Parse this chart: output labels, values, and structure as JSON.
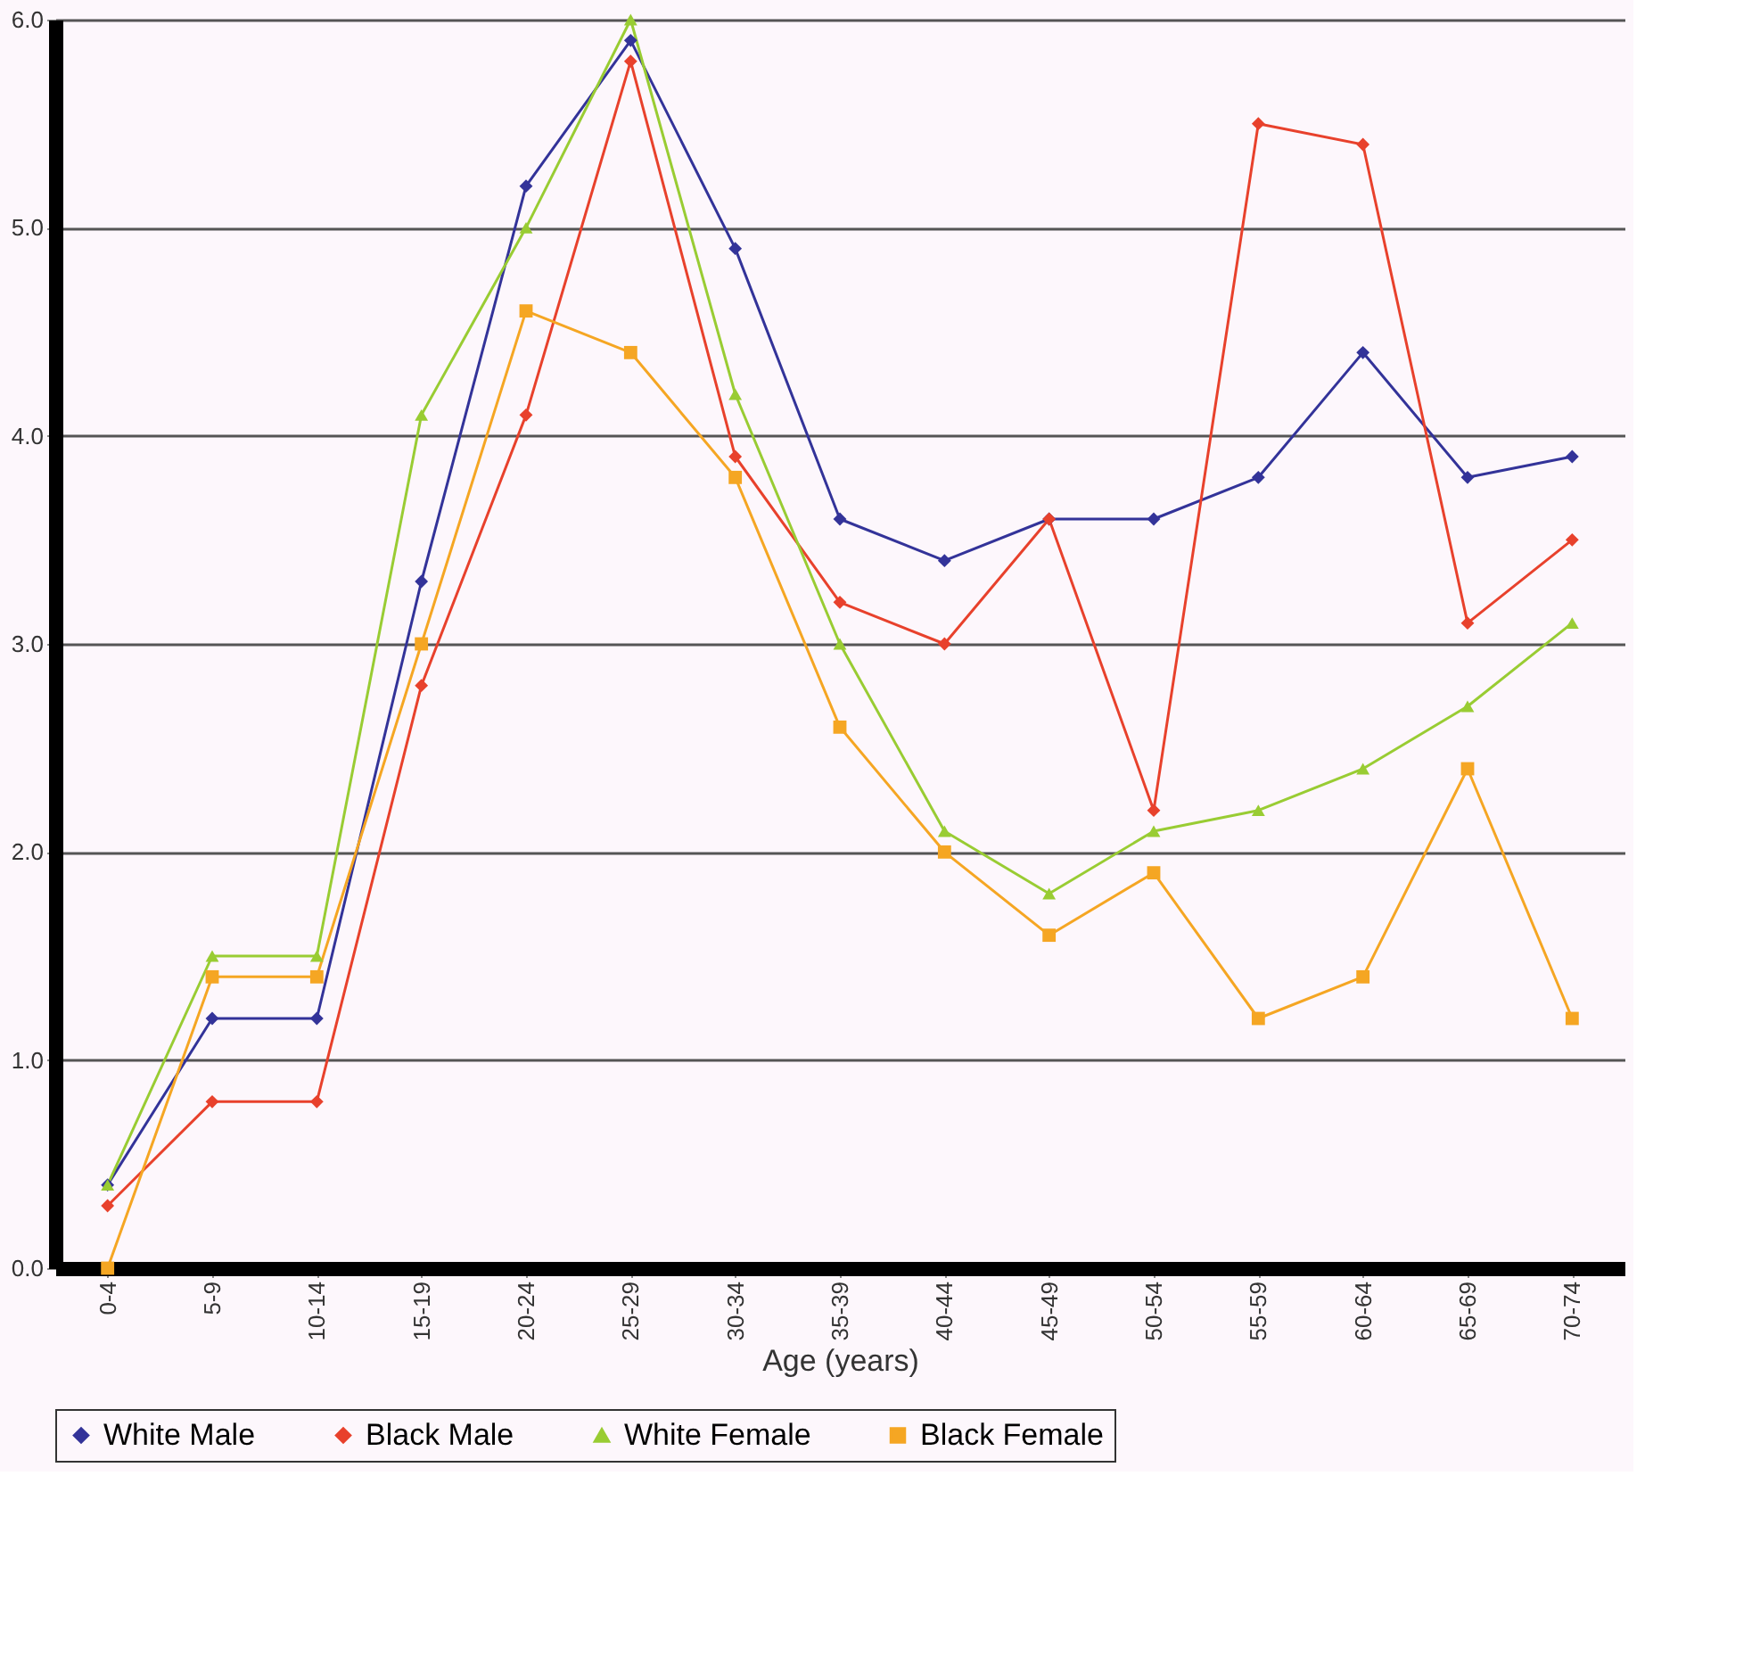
{
  "chart_data": {
    "type": "line",
    "xlabel": "Age (years)",
    "categories": [
      "0-4",
      "5-9",
      "10-14",
      "15-19",
      "20-24",
      "25-29",
      "30-34",
      "35-39",
      "40-44",
      "45-49",
      "50-54",
      "55-59",
      "60-64",
      "65-69",
      "70-74"
    ],
    "series": [
      {
        "name": "White Male",
        "color": "#333399",
        "marker": "diamond",
        "values": [
          0.4,
          1.2,
          1.2,
          3.3,
          5.2,
          5.9,
          4.9,
          3.6,
          3.4,
          3.6,
          3.6,
          3.8,
          4.4,
          3.8,
          3.9
        ]
      },
      {
        "name": "Black Male",
        "color": "#e8412c",
        "marker": "diamond",
        "values": [
          0.3,
          0.8,
          0.8,
          2.8,
          4.1,
          5.8,
          3.9,
          3.2,
          3.0,
          3.6,
          2.2,
          5.5,
          5.4,
          3.1,
          3.5
        ]
      },
      {
        "name": "White Female",
        "color": "#99cc33",
        "marker": "triangle",
        "values": [
          0.4,
          1.5,
          1.5,
          4.1,
          5.0,
          6.0,
          4.2,
          3.0,
          2.1,
          1.8,
          2.1,
          2.2,
          2.4,
          2.7,
          3.1
        ]
      },
      {
        "name": "Black Female",
        "color": "#f5a623",
        "marker": "square",
        "values": [
          0.0,
          1.4,
          1.4,
          3.0,
          4.6,
          4.4,
          3.8,
          2.6,
          2.0,
          1.6,
          1.9,
          1.2,
          1.4,
          2.4,
          1.2
        ]
      }
    ],
    "ylim": [
      0,
      6.0
    ],
    "yticks": [
      {
        "value": 0,
        "label": "0.0"
      },
      {
        "value": 1,
        "label": "1.0"
      },
      {
        "value": 2,
        "label": "2.0"
      },
      {
        "value": 3,
        "label": "3.0"
      },
      {
        "value": 4,
        "label": "4.0"
      },
      {
        "value": 5,
        "label": "5.0"
      },
      {
        "value": 6,
        "label": "6.0"
      }
    ],
    "grid": "y",
    "legend": "bottom",
    "line_style": "solid"
  }
}
